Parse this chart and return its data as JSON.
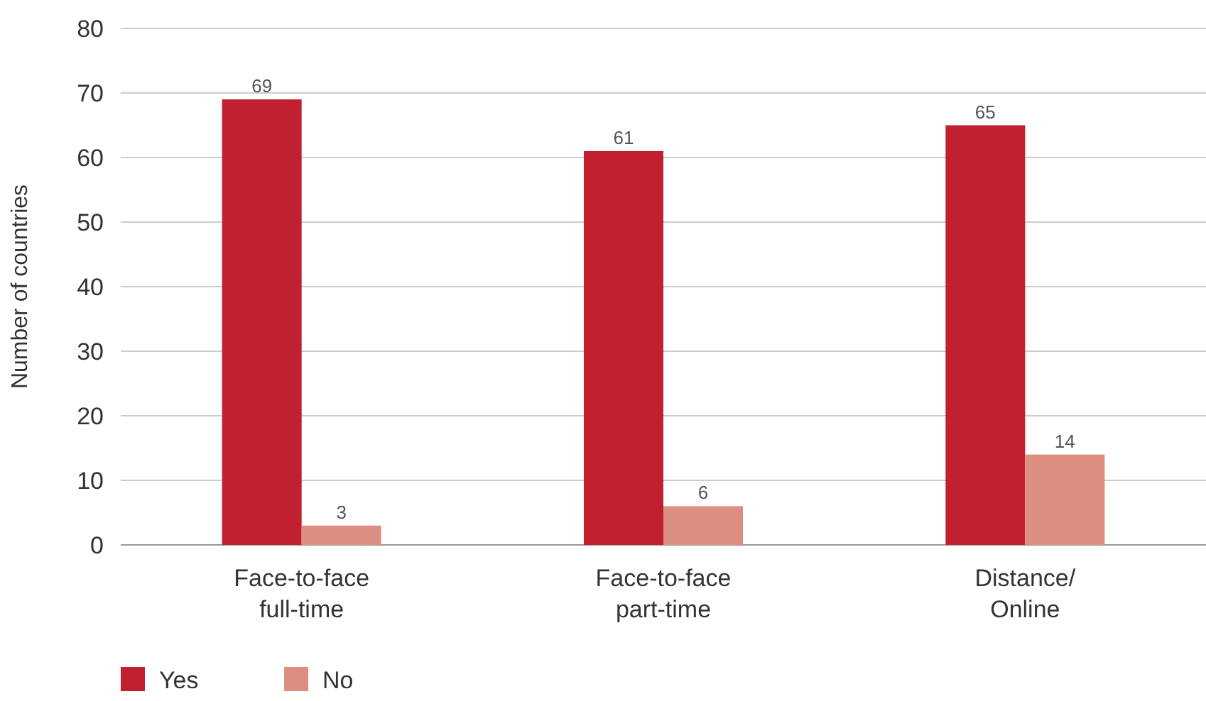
{
  "chart_data": {
    "type": "bar",
    "ylabel": "Number of countries",
    "categories": [
      "Face-to-face\nfull-time",
      "Face-to-face\npart-time",
      "Distance/\nOnline"
    ],
    "series": [
      {
        "name": "Yes",
        "color": "#c0202f",
        "values": [
          69,
          61,
          65
        ]
      },
      {
        "name": "No",
        "color": "#dc8e80",
        "values": [
          3,
          6,
          14
        ]
      }
    ],
    "ylim": [
      0,
      80
    ],
    "yticks": [
      0,
      10,
      20,
      30,
      40,
      50,
      60,
      70,
      80
    ],
    "grid": "y",
    "legend": "bottom left",
    "data_labels": true
  }
}
